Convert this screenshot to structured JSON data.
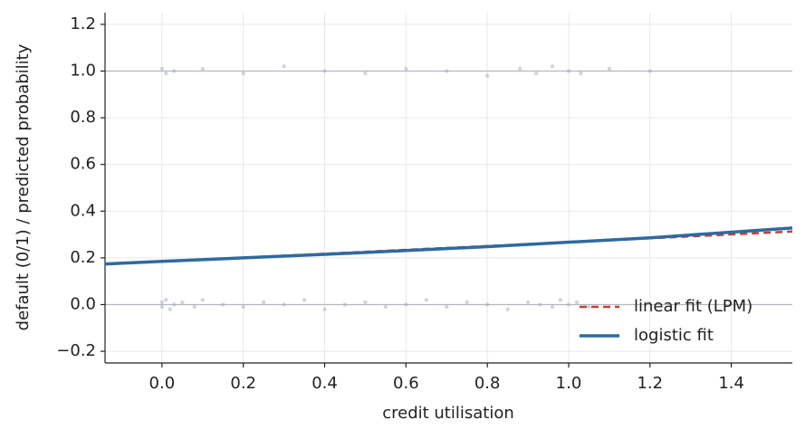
{
  "chart_data": {
    "type": "line",
    "xlabel": "credit utilisation",
    "ylabel": "default (0/1) / predicted probability",
    "xlim": [
      -0.14,
      1.55
    ],
    "ylim": [
      -0.25,
      1.25
    ],
    "xticks": [
      {
        "value": 0,
        "label": "0.0"
      },
      {
        "value": 0.2,
        "label": "0.2"
      },
      {
        "value": 0.4,
        "label": "0.4"
      },
      {
        "value": 0.6,
        "label": "0.6"
      },
      {
        "value": 0.8,
        "label": "0.8"
      },
      {
        "value": 1,
        "label": "1.0"
      },
      {
        "value": 1.2,
        "label": "1.2"
      },
      {
        "value": 1.4,
        "label": "1.4"
      }
    ],
    "yticks": [
      {
        "value": -0.2,
        "label": "−0.2"
      },
      {
        "value": 0,
        "label": "0.0"
      },
      {
        "value": 0.2,
        "label": "0.2"
      },
      {
        "value": 0.4,
        "label": "0.4"
      },
      {
        "value": 0.6,
        "label": "0.6"
      },
      {
        "value": 0.8,
        "label": "0.8"
      },
      {
        "value": 1,
        "label": "1.0"
      },
      {
        "value": 1.2,
        "label": "1.2"
      }
    ],
    "hlines": [
      0,
      1
    ],
    "grid": true,
    "legend": "lower right",
    "series": [
      {
        "type": "scatter",
        "color": "#9aa3b8",
        "x": [
          0,
          0,
          0.01,
          0.02,
          0.03,
          0.05,
          0.08,
          0.1,
          0.15,
          0.2,
          0.25,
          0.3,
          0.35,
          0.4,
          0.45,
          0.5,
          0.55,
          0.6,
          0.65,
          0.7,
          0.75,
          0.8,
          0.85,
          0.9,
          0.93,
          0.96,
          0.98,
          1.0,
          1.02,
          1.05,
          0,
          0.01,
          0.03,
          0.1,
          0.2,
          0.3,
          0.4,
          0.5,
          0.6,
          0.7,
          0.8,
          0.88,
          0.92,
          0.96,
          1.0,
          1.03,
          1.1,
          1.2
        ],
        "values": [
          0.01,
          -0.01,
          0.02,
          -0.02,
          0,
          0.01,
          -0.01,
          0.02,
          0,
          -0.01,
          0.01,
          0,
          0.02,
          -0.02,
          0,
          0.01,
          -0.01,
          0,
          0.02,
          -0.01,
          0.01,
          0,
          -0.02,
          0.01,
          0,
          -0.01,
          0.02,
          0,
          0.01,
          -0.01,
          1.01,
          0.99,
          1.0,
          1.01,
          0.99,
          1.02,
          1.0,
          0.99,
          1.01,
          1.0,
          0.98,
          1.01,
          0.99,
          1.02,
          1.0,
          0.99,
          1.01,
          1.0
        ]
      },
      {
        "type": "line",
        "name": "linear fit (LPM)",
        "color": "#d03c2c",
        "dashed": true,
        "x": [
          -0.14,
          1.55
        ],
        "values": [
          0.173,
          0.313
        ]
      },
      {
        "type": "line",
        "name": "logistic fit",
        "color": "#2e6aa0",
        "dashed": false,
        "x": [
          -0.14,
          0,
          0.4,
          0.8,
          1.2,
          1.55
        ],
        "values": [
          0.174,
          0.185,
          0.215,
          0.248,
          0.286,
          0.328
        ]
      }
    ]
  }
}
